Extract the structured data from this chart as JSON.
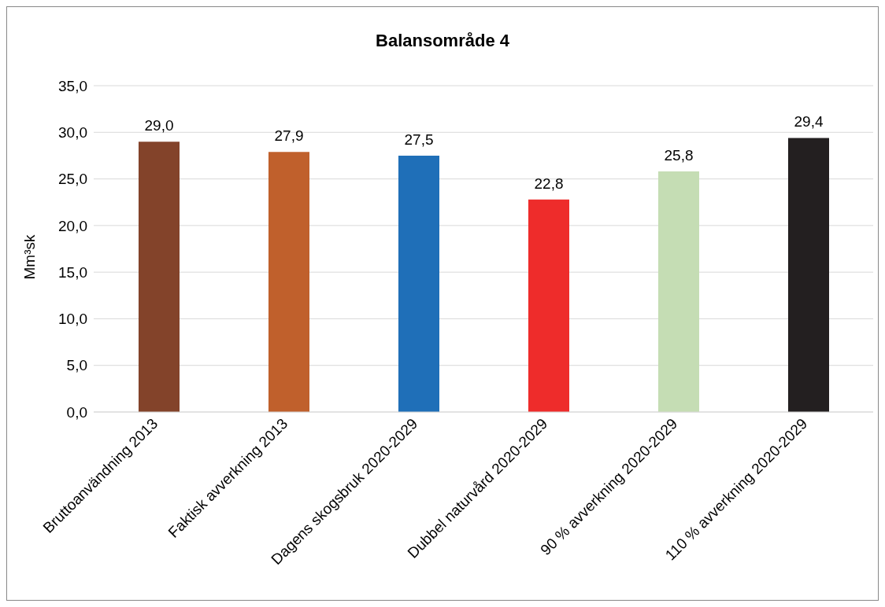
{
  "chart_data": {
    "type": "bar",
    "title": "Balansområde 4",
    "ylabel": "Mm³sk",
    "categories": [
      "Bruttoanvändning 2013",
      "Faktisk avverkning 2013",
      "Dagens skogsbruk 2020-2029",
      "Dubbel naturvård 2020-2029",
      "90 % avverkning 2020-2029",
      "110 % avverkning 2020-2029"
    ],
    "values": [
      29.0,
      27.9,
      27.5,
      22.8,
      25.8,
      29.4
    ],
    "colors": [
      "#83432a",
      "#c0602c",
      "#1f6fb8",
      "#ee2c2b",
      "#c5ddb4",
      "#231f20"
    ],
    "value_labels": [
      "29,0",
      "27,9",
      "27,5",
      "22,8",
      "25,8",
      "29,4"
    ],
    "ylim": [
      0,
      35
    ],
    "yticks": [
      {
        "value": 0,
        "label": "0,0"
      },
      {
        "value": 5,
        "label": "5,0"
      },
      {
        "value": 10,
        "label": "10,0"
      },
      {
        "value": 15,
        "label": "15,0"
      },
      {
        "value": 20,
        "label": "20,0"
      },
      {
        "value": 25,
        "label": "25,0"
      },
      {
        "value": 30,
        "label": "30,0"
      },
      {
        "value": 35,
        "label": "35,0"
      }
    ],
    "grid": "y",
    "legend": false
  }
}
